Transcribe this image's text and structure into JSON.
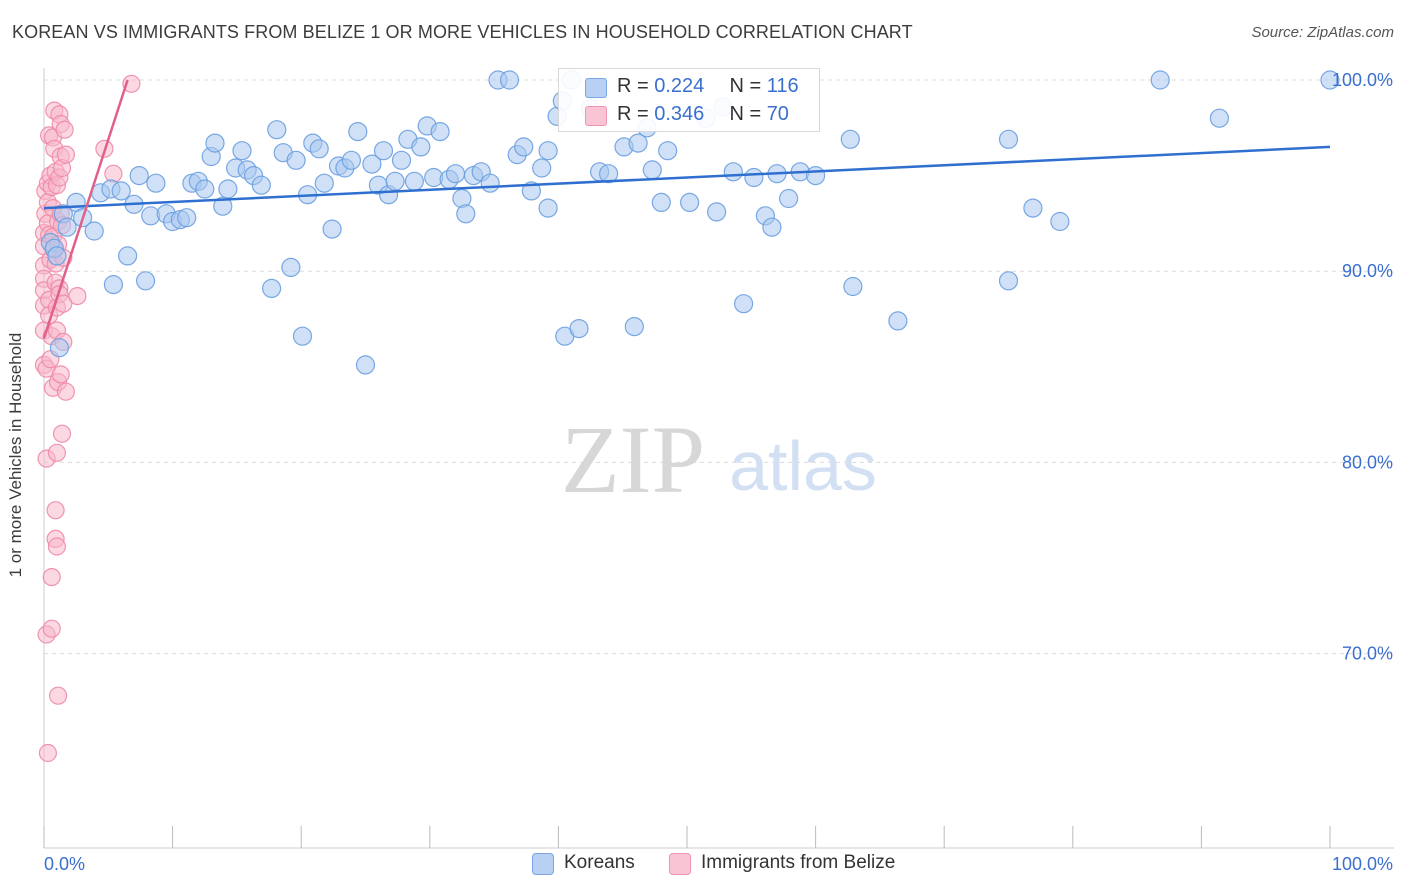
{
  "title": "KOREAN VS IMMIGRANTS FROM BELIZE 1 OR MORE VEHICLES IN HOUSEHOLD CORRELATION CHART",
  "source": "Source: ZipAtlas.com",
  "watermark": {
    "zip": "ZIP",
    "atlas": "atlas"
  },
  "legend": {
    "r_label": "R =",
    "n_label": "N =",
    "rows": [
      {
        "r": "0.224",
        "n": "116"
      },
      {
        "r": "0.346",
        "n": "70"
      }
    ]
  },
  "colors": {
    "koreans_fill": "#a9c8f0",
    "koreans_stroke": "#6a9ee0",
    "koreans_line": "#2f6fd0",
    "belize_fill": "#f7b8cb",
    "belize_stroke": "#ee8aa9",
    "belize_line": "#e0608a",
    "tick_label": "#3a6fcf",
    "grid": "#dcdcdc"
  },
  "chart_data": {
    "type": "scatter",
    "title": "KOREAN VS IMMIGRANTS FROM BELIZE 1 OR MORE VEHICLES IN HOUSEHOLD CORRELATION CHART",
    "xlabel": "",
    "ylabel": "1 or more Vehicles in Household",
    "xlim": [
      0,
      100
    ],
    "ylim": [
      60.5,
      101.5
    ],
    "x_tick_labels": [
      "0.0%",
      "100.0%"
    ],
    "y_ticks": [
      70,
      80,
      90,
      100
    ],
    "y_tick_labels": [
      "70.0%",
      "80.0%",
      "90.0%",
      "100.0%"
    ],
    "grid": true,
    "legend_position": "top-center",
    "series": [
      {
        "name": "Koreans",
        "trend": {
          "x": [
            0,
            100
          ],
          "y": [
            93.3,
            96.5
          ]
        },
        "points": [
          [
            0.5,
            91.5
          ],
          [
            0.8,
            91.2
          ],
          [
            1.0,
            90.8
          ],
          [
            1.2,
            86.0
          ],
          [
            1.5,
            93.0
          ],
          [
            1.8,
            92.3
          ],
          [
            2.5,
            93.6
          ],
          [
            3.0,
            92.8
          ],
          [
            3.9,
            92.1
          ],
          [
            4.4,
            94.1
          ],
          [
            5.2,
            94.3
          ],
          [
            6.0,
            94.2
          ],
          [
            5.4,
            89.3
          ],
          [
            6.5,
            90.8
          ],
          [
            7.0,
            93.5
          ],
          [
            7.4,
            95.0
          ],
          [
            7.9,
            89.5
          ],
          [
            8.3,
            92.9
          ],
          [
            8.7,
            94.6
          ],
          [
            9.5,
            93.0
          ],
          [
            10.0,
            92.6
          ],
          [
            10.6,
            92.7
          ],
          [
            11.1,
            92.8
          ],
          [
            11.5,
            94.6
          ],
          [
            12.0,
            94.7
          ],
          [
            12.5,
            94.3
          ],
          [
            13.0,
            96.0
          ],
          [
            13.3,
            96.7
          ],
          [
            13.9,
            93.4
          ],
          [
            14.3,
            94.3
          ],
          [
            14.9,
            95.4
          ],
          [
            15.4,
            96.3
          ],
          [
            15.8,
            95.3
          ],
          [
            16.3,
            95.0
          ],
          [
            16.9,
            94.5
          ],
          [
            17.7,
            89.1
          ],
          [
            18.1,
            97.4
          ],
          [
            18.6,
            96.2
          ],
          [
            19.2,
            90.2
          ],
          [
            19.6,
            95.8
          ],
          [
            20.1,
            86.6
          ],
          [
            20.5,
            94.0
          ],
          [
            20.9,
            96.7
          ],
          [
            21.4,
            96.4
          ],
          [
            21.8,
            94.6
          ],
          [
            22.4,
            92.2
          ],
          [
            22.9,
            95.5
          ],
          [
            23.4,
            95.4
          ],
          [
            23.9,
            95.8
          ],
          [
            24.4,
            97.3
          ],
          [
            25.0,
            85.1
          ],
          [
            25.5,
            95.6
          ],
          [
            26.0,
            94.5
          ],
          [
            26.4,
            96.3
          ],
          [
            26.8,
            94.0
          ],
          [
            27.3,
            94.7
          ],
          [
            27.8,
            95.8
          ],
          [
            28.3,
            96.9
          ],
          [
            28.8,
            94.7
          ],
          [
            29.3,
            96.5
          ],
          [
            29.8,
            97.6
          ],
          [
            30.3,
            94.9
          ],
          [
            30.8,
            97.3
          ],
          [
            31.5,
            94.8
          ],
          [
            32.0,
            95.1
          ],
          [
            32.5,
            93.8
          ],
          [
            32.8,
            93.0
          ],
          [
            33.4,
            95.0
          ],
          [
            34.0,
            95.2
          ],
          [
            34.7,
            94.6
          ],
          [
            35.3,
            100.0
          ],
          [
            36.2,
            100.0
          ],
          [
            36.8,
            96.1
          ],
          [
            37.3,
            96.5
          ],
          [
            37.9,
            94.2
          ],
          [
            38.7,
            95.4
          ],
          [
            39.2,
            96.3
          ],
          [
            39.2,
            93.3
          ],
          [
            39.9,
            98.1
          ],
          [
            40.3,
            98.9
          ],
          [
            40.5,
            86.6
          ],
          [
            41.0,
            100.0
          ],
          [
            41.6,
            87.0
          ],
          [
            42.5,
            98.5
          ],
          [
            43.2,
            95.2
          ],
          [
            43.9,
            95.1
          ],
          [
            45.1,
            96.5
          ],
          [
            45.9,
            87.1
          ],
          [
            46.2,
            96.7
          ],
          [
            46.9,
            97.5
          ],
          [
            47.3,
            95.3
          ],
          [
            48.0,
            93.6
          ],
          [
            48.5,
            96.3
          ],
          [
            50.2,
            93.6
          ],
          [
            51.5,
            98.0
          ],
          [
            52.3,
            93.1
          ],
          [
            52.8,
            98.6
          ],
          [
            53.6,
            95.2
          ],
          [
            54.4,
            88.3
          ],
          [
            55.2,
            94.9
          ],
          [
            56.1,
            92.9
          ],
          [
            56.6,
            92.3
          ],
          [
            57.0,
            95.1
          ],
          [
            57.9,
            93.8
          ],
          [
            58.8,
            95.2
          ],
          [
            60.0,
            95.0
          ],
          [
            62.7,
            96.9
          ],
          [
            62.9,
            89.2
          ],
          [
            66.4,
            87.4
          ],
          [
            75.0,
            89.5
          ],
          [
            76.9,
            93.3
          ],
          [
            75.0,
            96.9
          ],
          [
            79.0,
            92.6
          ],
          [
            86.8,
            100.0
          ],
          [
            91.4,
            98.0
          ],
          [
            100.0,
            100.0
          ]
        ]
      },
      {
        "name": "Immigrants from Belize",
        "trend": {
          "x": [
            0,
            6.5
          ],
          "y": [
            86.5,
            100.0
          ]
        },
        "points": [
          [
            0.0,
            92.0
          ],
          [
            0.0,
            91.3
          ],
          [
            0.0,
            90.3
          ],
          [
            0.0,
            89.6
          ],
          [
            0.0,
            89.0
          ],
          [
            0.0,
            88.2
          ],
          [
            0.0,
            86.9
          ],
          [
            0.0,
            85.1
          ],
          [
            0.1,
            94.2
          ],
          [
            0.1,
            93.0
          ],
          [
            0.2,
            84.9
          ],
          [
            0.2,
            80.2
          ],
          [
            0.2,
            71.0
          ],
          [
            0.3,
            94.6
          ],
          [
            0.3,
            93.6
          ],
          [
            0.3,
            92.5
          ],
          [
            0.3,
            64.8
          ],
          [
            0.4,
            97.1
          ],
          [
            0.4,
            91.9
          ],
          [
            0.4,
            88.5
          ],
          [
            0.4,
            87.7
          ],
          [
            0.5,
            95.0
          ],
          [
            0.5,
            90.6
          ],
          [
            0.5,
            85.4
          ],
          [
            0.6,
            94.4
          ],
          [
            0.6,
            86.6
          ],
          [
            0.6,
            74.0
          ],
          [
            0.6,
            71.3
          ],
          [
            0.7,
            97.0
          ],
          [
            0.7,
            93.3
          ],
          [
            0.7,
            91.8
          ],
          [
            0.7,
            83.9
          ],
          [
            0.8,
            98.4
          ],
          [
            0.8,
            96.4
          ],
          [
            0.8,
            91.1
          ],
          [
            0.9,
            95.2
          ],
          [
            0.9,
            90.4
          ],
          [
            0.9,
            89.4
          ],
          [
            0.9,
            77.5
          ],
          [
            0.9,
            76.0
          ],
          [
            1.0,
            94.5
          ],
          [
            1.0,
            88.1
          ],
          [
            1.0,
            86.9
          ],
          [
            1.0,
            80.5
          ],
          [
            1.0,
            75.6
          ],
          [
            1.1,
            92.6
          ],
          [
            1.1,
            91.4
          ],
          [
            1.1,
            84.2
          ],
          [
            1.1,
            67.8
          ],
          [
            1.2,
            98.2
          ],
          [
            1.2,
            94.9
          ],
          [
            1.2,
            89.1
          ],
          [
            1.2,
            88.8
          ],
          [
            1.3,
            97.7
          ],
          [
            1.3,
            96.0
          ],
          [
            1.3,
            93.0
          ],
          [
            1.3,
            84.6
          ],
          [
            1.4,
            95.4
          ],
          [
            1.4,
            92.4
          ],
          [
            1.4,
            81.5
          ],
          [
            1.5,
            90.7
          ],
          [
            1.5,
            88.3
          ],
          [
            1.5,
            86.3
          ],
          [
            1.6,
            97.4
          ],
          [
            1.7,
            96.1
          ],
          [
            1.7,
            83.7
          ],
          [
            2.6,
            88.7
          ],
          [
            4.7,
            96.4
          ],
          [
            5.4,
            95.1
          ],
          [
            6.8,
            99.8
          ]
        ]
      }
    ]
  },
  "bottom_legend": [
    "Koreans",
    "Immigrants from Belize"
  ]
}
